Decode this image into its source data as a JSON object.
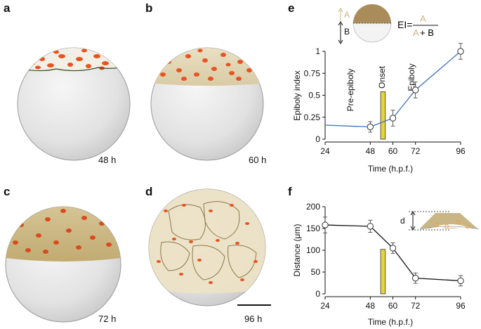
{
  "panels": {
    "a": {
      "letter": "a",
      "time": "48 h"
    },
    "b": {
      "letter": "b",
      "time": "60 h"
    },
    "c": {
      "letter": "c",
      "time": "72 h"
    },
    "d": {
      "letter": "d",
      "time": "96 h"
    },
    "e": {
      "letter": "e"
    },
    "f": {
      "letter": "f"
    }
  },
  "colors": {
    "line_e": "#3f6fbf",
    "line_f": "#111111",
    "onset_bar": "#e6d43c",
    "pigment": "#e8531f",
    "cap_tan": "#c9b585"
  },
  "formula": {
    "a_label": "A",
    "b_label": "B",
    "lhs": "EI=",
    "numerator": "A",
    "denominator_a": "A",
    "denominator_rest": " + B"
  },
  "inset_f": {
    "d_label": "d"
  },
  "chart_data": [
    {
      "type": "line",
      "panel": "e",
      "title": "",
      "xlabel": "Time (h.p.f.)",
      "ylabel": "Epiboly index",
      "xlim": [
        24,
        96
      ],
      "ylim": [
        0,
        1
      ],
      "xticks": [
        "24",
        "48",
        "60",
        "72",
        "96"
      ],
      "yticks": [
        "0",
        "0.25",
        "0.5",
        "0.75",
        "1"
      ],
      "series": [
        {
          "x": [
            48,
            60,
            72,
            96
          ],
          "y": [
            0.14,
            0.24,
            0.56,
            1.0
          ],
          "err": [
            0.06,
            0.09,
            0.09,
            0.09
          ]
        }
      ],
      "trend_start": {
        "x": 24,
        "y": 0.16
      },
      "onset_bar": {
        "x": 53.5,
        "width": 2.5,
        "value": 0.54
      },
      "annotations": [
        "Pre-epiboly",
        "Onset",
        "Epiboly"
      ]
    },
    {
      "type": "line",
      "panel": "f",
      "title": "",
      "xlabel": "Time (h.p.f.)",
      "ylabel": "Distance (μm)",
      "xlim": [
        24,
        96
      ],
      "ylim": [
        0,
        200
      ],
      "xticks": [
        "24",
        "48",
        "60",
        "72",
        "96"
      ],
      "yticks": [
        "0",
        "50",
        "100",
        "150",
        "200"
      ],
      "series": [
        {
          "x": [
            24,
            48,
            60,
            72,
            96
          ],
          "y": [
            158,
            155,
            105,
            36,
            30
          ],
          "err": [
            18,
            14,
            12,
            12,
            12
          ]
        }
      ],
      "onset_bar": {
        "x": 53.5,
        "width": 2.5,
        "value": 102
      }
    }
  ]
}
